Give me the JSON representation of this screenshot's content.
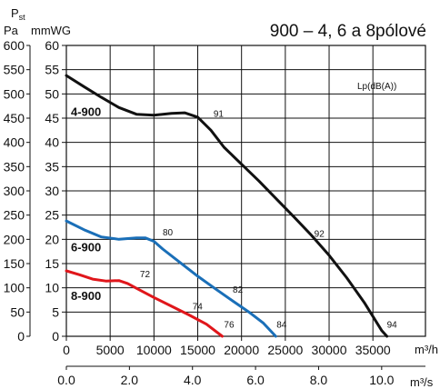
{
  "chart_data": {
    "type": "line",
    "title": "900 – 4, 6 a 8pólové",
    "y_symbol": "P",
    "y_symbol_sub": "st",
    "y_units": [
      "Pa",
      "mmWG"
    ],
    "x_units": [
      "m³/h",
      "m³/s"
    ],
    "lp_label": "Lp(dB(A))",
    "x_primary": {
      "unit": "m³/h",
      "range": [
        0,
        41000
      ],
      "ticks": [
        0,
        5000,
        10000,
        15000,
        20000,
        25000,
        30000,
        35000
      ],
      "tick_labels": [
        "0",
        "5000",
        "10000",
        "15000",
        "20000",
        "25000",
        "30000",
        "35000"
      ]
    },
    "x_secondary": {
      "unit": "m³/s",
      "ticks": [
        0,
        2,
        4,
        6,
        8,
        10
      ],
      "tick_labels": [
        "0.0",
        "2.0",
        "4.0",
        "6.0",
        "8.0",
        "10.0"
      ]
    },
    "y_mmwg": {
      "range": [
        0,
        60
      ],
      "ticks": [
        0,
        5,
        10,
        15,
        20,
        25,
        30,
        35,
        40,
        45,
        50,
        55,
        60
      ],
      "tick_labels": [
        "0",
        "5",
        "10",
        "15",
        "20",
        "25",
        "30",
        "35",
        "40",
        "45",
        "50",
        "55",
        "60"
      ]
    },
    "y_pa": {
      "range": [
        0,
        600
      ],
      "ticks": [
        0,
        50,
        100,
        150,
        200,
        250,
        300,
        350,
        400,
        450,
        500,
        550,
        600
      ],
      "tick_labels": [
        "0",
        "50",
        "100",
        "150",
        "200",
        "250",
        "300",
        "350",
        "400",
        "450",
        "500",
        "550",
        "600"
      ]
    },
    "grid": true,
    "series": [
      {
        "name": "4-900",
        "color": "#111111",
        "points": [
          [
            0,
            53.8
          ],
          [
            2000,
            51.5
          ],
          [
            4000,
            49.3
          ],
          [
            6000,
            47.2
          ],
          [
            8000,
            45.8
          ],
          [
            10000,
            45.6
          ],
          [
            12000,
            46.0
          ],
          [
            13500,
            46.1
          ],
          [
            15000,
            45.2
          ],
          [
            16500,
            42.5
          ],
          [
            18000,
            39.0
          ],
          [
            20000,
            35.5
          ],
          [
            22000,
            32.0
          ],
          [
            24000,
            28.3
          ],
          [
            26000,
            24.6
          ],
          [
            28000,
            20.8
          ],
          [
            30000,
            16.7
          ],
          [
            32000,
            12.1
          ],
          [
            34000,
            7.0
          ],
          [
            36000,
            1.2
          ],
          [
            36600,
            0
          ]
        ],
        "noise": [
          {
            "x": 16800,
            "y": 45.3,
            "label": "91"
          },
          {
            "x": 28300,
            "y": 20.5,
            "label": "92"
          },
          {
            "x": 36600,
            "y": 1.8,
            "label": "94"
          }
        ]
      },
      {
        "name": "6-900",
        "color": "#1a6fb8",
        "points": [
          [
            0,
            23.8
          ],
          [
            2000,
            22.0
          ],
          [
            4000,
            20.5
          ],
          [
            6000,
            20.0
          ],
          [
            8000,
            20.3
          ],
          [
            9000,
            20.3
          ],
          [
            10000,
            19.6
          ],
          [
            11000,
            18.0
          ],
          [
            13000,
            15.2
          ],
          [
            15000,
            12.4
          ],
          [
            17000,
            9.8
          ],
          [
            19000,
            7.3
          ],
          [
            21000,
            4.8
          ],
          [
            22500,
            2.7
          ],
          [
            23900,
            0
          ]
        ],
        "noise": [
          {
            "x": 11000,
            "y": 20.8,
            "label": "80"
          },
          {
            "x": 19000,
            "y": 9.0,
            "label": "82"
          },
          {
            "x": 24000,
            "y": 1.8,
            "label": "84"
          }
        ]
      },
      {
        "name": "8-900",
        "color": "#e0161b",
        "points": [
          [
            0,
            13.5
          ],
          [
            1500,
            12.7
          ],
          [
            3000,
            11.8
          ],
          [
            4500,
            11.4
          ],
          [
            6000,
            11.5
          ],
          [
            7000,
            10.9
          ],
          [
            8000,
            9.9
          ],
          [
            10000,
            8.0
          ],
          [
            12000,
            6.2
          ],
          [
            14000,
            4.4
          ],
          [
            16000,
            2.5
          ],
          [
            17800,
            0
          ]
        ],
        "noise": [
          {
            "x": 8400,
            "y": 12.2,
            "label": "72"
          },
          {
            "x": 14400,
            "y": 5.5,
            "label": "74"
          },
          {
            "x": 18000,
            "y": 1.8,
            "label": "76"
          }
        ]
      }
    ],
    "series_labels": [
      "4-900",
      "6-900",
      "8-900"
    ]
  }
}
